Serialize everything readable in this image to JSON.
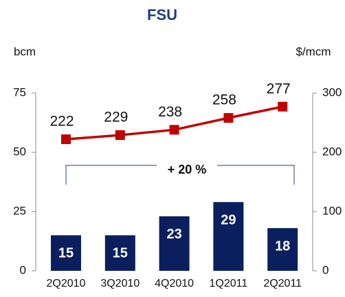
{
  "chart_data": {
    "type": "bar",
    "title": "FSU",
    "y_label": "bcm",
    "y2_label": "$/mcm",
    "annotation": "+ 20 %",
    "categories": [
      "2Q2010",
      "3Q2010",
      "4Q2010",
      "1Q2011",
      "2Q2011"
    ],
    "series": [
      {
        "type": "bar",
        "color": "#0b1f5e",
        "values": [
          15,
          15,
          23,
          29,
          18
        ]
      },
      {
        "type": "line",
        "axis": "y2",
        "color": "#c00000",
        "values": [
          222,
          229,
          238,
          258,
          277
        ]
      }
    ],
    "ylim": [
      0,
      75
    ],
    "yticks": [
      0,
      25,
      50,
      75
    ],
    "y2lim": [
      0,
      300
    ],
    "y2ticks": [
      0,
      100,
      200,
      300
    ]
  }
}
